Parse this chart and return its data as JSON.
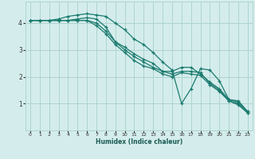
{
  "xlabel": "Humidex (Indice chaleur)",
  "ylabel": "",
  "bg_color": "#d4edec",
  "grid_color": "#aed4d0",
  "line_color": "#1a7a6e",
  "xlim": [
    -0.5,
    23.5
  ],
  "ylim": [
    0,
    4.8
  ],
  "yticks": [
    1,
    2,
    3,
    4
  ],
  "xticks": [
    0,
    1,
    2,
    3,
    4,
    5,
    6,
    7,
    8,
    9,
    10,
    11,
    12,
    13,
    14,
    15,
    16,
    17,
    18,
    19,
    20,
    21,
    22,
    23
  ],
  "series": [
    {
      "x": [
        0,
        1,
        2,
        3,
        4,
        5,
        6,
        7,
        8,
        9,
        10,
        11,
        12,
        13,
        14,
        15,
        16,
        17,
        18,
        19,
        20,
        21,
        22,
        23
      ],
      "y": [
        4.1,
        4.1,
        4.1,
        4.15,
        4.25,
        4.3,
        4.35,
        4.3,
        4.25,
        4.0,
        3.75,
        3.4,
        3.2,
        2.9,
        2.55,
        2.25,
        1.0,
        1.55,
        2.3,
        2.25,
        1.85,
        1.15,
        1.1,
        0.7
      ]
    },
    {
      "x": [
        0,
        1,
        2,
        3,
        4,
        5,
        6,
        7,
        8,
        9,
        10,
        11,
        12,
        13,
        14,
        15,
        16,
        17,
        18,
        19,
        20,
        21,
        22,
        23
      ],
      "y": [
        4.1,
        4.1,
        4.1,
        4.1,
        4.1,
        4.15,
        4.2,
        4.15,
        3.85,
        3.3,
        3.1,
        2.85,
        2.65,
        2.5,
        2.2,
        2.2,
        2.35,
        2.35,
        2.1,
        1.8,
        1.55,
        1.15,
        1.05,
        0.7
      ]
    },
    {
      "x": [
        0,
        1,
        2,
        3,
        4,
        5,
        6,
        7,
        8,
        9,
        10,
        11,
        12,
        13,
        14,
        15,
        16,
        17,
        18,
        19,
        20,
        21,
        22,
        23
      ],
      "y": [
        4.1,
        4.1,
        4.1,
        4.1,
        4.1,
        4.1,
        4.1,
        4.0,
        3.7,
        3.3,
        3.0,
        2.75,
        2.55,
        2.35,
        2.2,
        2.1,
        2.2,
        2.2,
        2.15,
        1.75,
        1.5,
        1.1,
        1.0,
        0.65
      ]
    },
    {
      "x": [
        0,
        1,
        2,
        3,
        4,
        5,
        6,
        7,
        8,
        9,
        10,
        11,
        12,
        13,
        14,
        15,
        16,
        17,
        18,
        19,
        20,
        21,
        22,
        23
      ],
      "y": [
        4.1,
        4.1,
        4.1,
        4.1,
        4.1,
        4.1,
        4.1,
        3.9,
        3.6,
        3.2,
        2.9,
        2.6,
        2.4,
        2.3,
        2.1,
        2.0,
        2.15,
        2.1,
        2.05,
        1.7,
        1.45,
        1.1,
        0.95,
        0.65
      ]
    }
  ]
}
